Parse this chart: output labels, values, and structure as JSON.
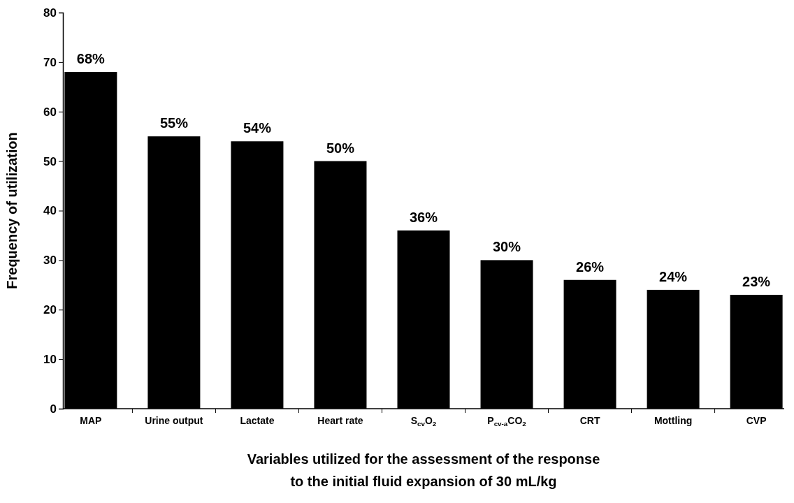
{
  "chart_data": {
    "type": "bar",
    "xlabel": "Variables utilized for the assessment of the response\nto the initial fluid expansion of 30 mL/kg",
    "ylabel": "Frequency of utilization",
    "categories": [
      "MAP",
      "Urine output",
      "Lactate",
      "Heart rate",
      "S$_{cv}$O$_{2}$",
      "P$_{cv-a}$CO$_{2}$",
      "CRT",
      "Mottling",
      "CVP"
    ],
    "values": [
      68,
      55,
      54,
      50,
      36,
      30,
      26,
      24,
      23
    ],
    "value_labels": [
      "68%",
      "55%",
      "54%",
      "50%",
      "36%",
      "30%",
      "26%",
      "24%",
      "23%"
    ],
    "color": "#000000",
    "ylim": [
      0,
      80
    ],
    "yticks": [
      0,
      10,
      20,
      30,
      40,
      50,
      60,
      70,
      80
    ],
    "grid": false
  }
}
